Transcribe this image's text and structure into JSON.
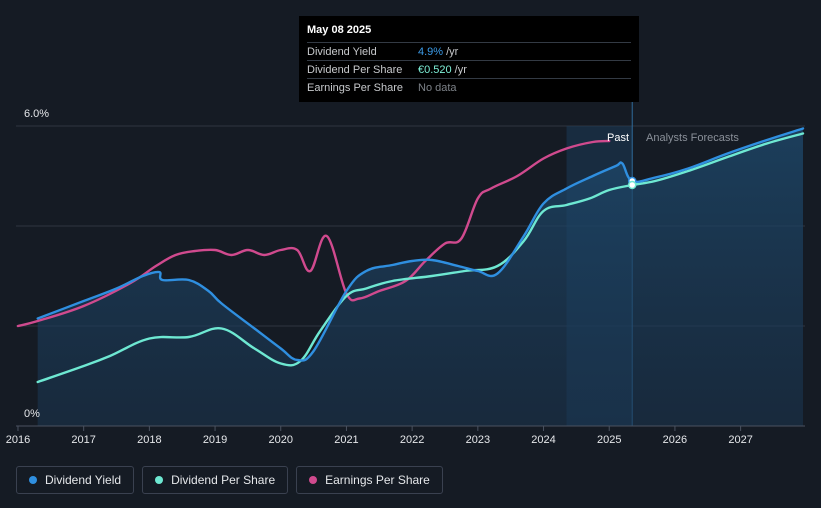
{
  "tooltip": {
    "date": "May 08 2025",
    "rows": [
      {
        "label": "Dividend Yield",
        "value": "4.9%",
        "unit": "/yr",
        "color": "#3b9be8"
      },
      {
        "label": "Dividend Per Share",
        "value": "€0.520",
        "unit": "/yr",
        "color": "#7ef0d8"
      },
      {
        "label": "Earnings Per Share",
        "value": "No data",
        "unit": "",
        "color": "#7d8288"
      }
    ]
  },
  "regions": {
    "past_label": "Past",
    "forecast_label": "Analysts Forecasts"
  },
  "legend": [
    {
      "label": "Dividend Yield",
      "color": "#2f8fe0"
    },
    {
      "label": "Dividend Per Share",
      "color": "#6ee8d2"
    },
    {
      "label": "Earnings Per Share",
      "color": "#d04a8e"
    }
  ],
  "chart_data": {
    "type": "line",
    "title": "",
    "xlabel": "",
    "ylabel": "",
    "ylim": [
      0,
      6
    ],
    "y_tick_labels": [
      "6.0%",
      "0%"
    ],
    "x_tick_labels": [
      "2016",
      "2017",
      "2018",
      "2019",
      "2020",
      "2021",
      "2022",
      "2023",
      "2024",
      "2025",
      "2026",
      "2027"
    ],
    "xlim": [
      2015.97,
      2027.98
    ],
    "past_start": 2024.35,
    "now": 2025.35,
    "series": [
      {
        "name": "Dividend Yield",
        "color": "#2f8fe0",
        "x": [
          2016.3,
          2017.0,
          2017.5,
          2017.9,
          2018.15,
          2018.2,
          2018.6,
          2018.9,
          2019.1,
          2019.6,
          2020.0,
          2020.25,
          2020.5,
          2021.0,
          2021.3,
          2021.7,
          2022.0,
          2022.3,
          2022.7,
          2023.0,
          2023.3,
          2023.7,
          2024.0,
          2024.35,
          2024.75,
          2025.1,
          2025.2,
          2025.35,
          2025.7,
          2026.2,
          2026.8,
          2027.4,
          2027.95
        ],
        "y": [
          2.15,
          2.5,
          2.75,
          3.0,
          3.08,
          2.92,
          2.92,
          2.7,
          2.45,
          1.95,
          1.55,
          1.32,
          1.5,
          2.7,
          3.1,
          3.22,
          3.3,
          3.32,
          3.2,
          3.1,
          3.05,
          3.8,
          4.45,
          4.75,
          5.0,
          5.2,
          5.25,
          4.9,
          4.97,
          5.15,
          5.45,
          5.72,
          5.95
        ]
      },
      {
        "name": "Dividend Per Share",
        "color": "#6ee8d2",
        "x": [
          2016.3,
          2017.0,
          2017.4,
          2018.0,
          2018.6,
          2019.1,
          2019.6,
          2020.0,
          2020.3,
          2020.6,
          2021.0,
          2021.3,
          2021.7,
          2022.3,
          2022.8,
          2023.3,
          2023.7,
          2024.0,
          2024.35,
          2024.7,
          2025.0,
          2025.35,
          2025.7,
          2026.2,
          2026.8,
          2027.4,
          2027.95
        ],
        "y": [
          0.88,
          1.2,
          1.4,
          1.75,
          1.78,
          1.95,
          1.55,
          1.25,
          1.3,
          1.9,
          2.6,
          2.75,
          2.9,
          3.0,
          3.1,
          3.2,
          3.7,
          4.3,
          4.42,
          4.55,
          4.72,
          4.82,
          4.9,
          5.1,
          5.38,
          5.65,
          5.85
        ]
      },
      {
        "name": "Earnings Per Share",
        "color": "#d04a8e",
        "x": [
          2016.0,
          2016.3,
          2017.0,
          2017.7,
          2018.1,
          2018.4,
          2018.7,
          2019.0,
          2019.25,
          2019.5,
          2019.75,
          2020.0,
          2020.25,
          2020.45,
          2020.7,
          2021.0,
          2021.2,
          2021.5,
          2021.9,
          2022.2,
          2022.5,
          2022.75,
          2023.0,
          2023.2,
          2023.6,
          2024.0,
          2024.35,
          2024.75,
          2025.0
        ],
        "y": [
          2.0,
          2.1,
          2.4,
          2.85,
          3.2,
          3.42,
          3.5,
          3.52,
          3.42,
          3.52,
          3.42,
          3.52,
          3.52,
          3.1,
          3.8,
          2.65,
          2.55,
          2.7,
          2.9,
          3.3,
          3.65,
          3.75,
          4.55,
          4.75,
          5.0,
          5.35,
          5.55,
          5.68,
          5.7
        ]
      }
    ],
    "markers": [
      {
        "series": "Dividend Yield",
        "x": 2025.35,
        "y": 4.9
      },
      {
        "series": "Dividend Per Share",
        "x": 2025.35,
        "y": 4.82
      }
    ]
  }
}
